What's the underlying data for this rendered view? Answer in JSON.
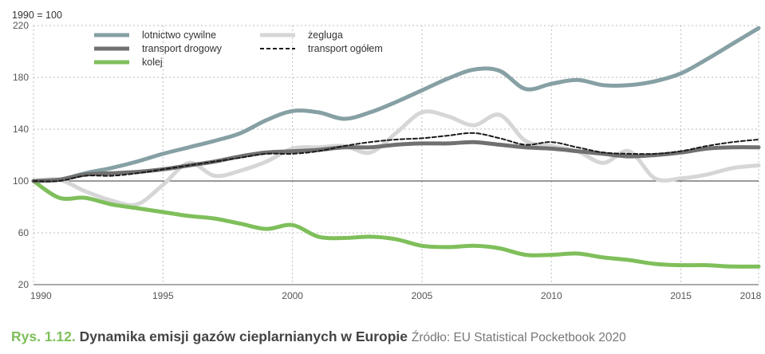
{
  "chart_data": {
    "type": "line",
    "unit_label": "1990 = 100",
    "ylim": [
      20,
      220
    ],
    "yticks": [
      20,
      60,
      100,
      140,
      180,
      220
    ],
    "xlim": [
      1990,
      2018
    ],
    "xticks": [
      1990,
      1995,
      2000,
      2005,
      2010,
      2015,
      2018
    ],
    "x": [
      1990,
      1991,
      1992,
      1993,
      1994,
      1995,
      1996,
      1997,
      1998,
      1999,
      2000,
      2001,
      2002,
      2003,
      2004,
      2005,
      2006,
      2007,
      2008,
      2009,
      2010,
      2011,
      2012,
      2013,
      2014,
      2015,
      2016,
      2017,
      2018
    ],
    "baseline": 100,
    "grid": "dotted",
    "legend": "top-left",
    "series": [
      {
        "name": "lotnictwo cywilne",
        "color": "#86a0a4",
        "width": 5,
        "dash": "",
        "values": [
          100,
          101,
          106,
          110,
          115,
          121,
          126,
          131,
          137,
          147,
          154,
          153,
          148,
          153,
          161,
          170,
          179,
          186,
          185,
          171,
          175,
          178,
          174,
          174,
          177,
          183,
          194,
          206,
          218
        ]
      },
      {
        "name": "transport drogowy",
        "color": "#707070",
        "width": 5,
        "dash": "",
        "values": [
          100,
          101,
          105,
          106,
          107,
          109,
          112,
          115,
          119,
          122,
          123,
          124,
          126,
          126,
          128,
          129,
          129,
          130,
          128,
          126,
          125,
          123,
          121,
          119,
          120,
          122,
          125,
          126,
          126
        ]
      },
      {
        "name": "kolej",
        "color": "#7fbf5b",
        "width": 5,
        "dash": "",
        "values": [
          100,
          87,
          87,
          82,
          79,
          76,
          73,
          71,
          67,
          63,
          66,
          57,
          56,
          57,
          55,
          50,
          49,
          50,
          48,
          43,
          43,
          44,
          41,
          39,
          36,
          35,
          35,
          34,
          34
        ]
      },
      {
        "name": "żegluga",
        "color": "#d6d6d6",
        "width": 5,
        "dash": "",
        "values": [
          100,
          101,
          92,
          85,
          82,
          97,
          114,
          104,
          108,
          115,
          125,
          126,
          127,
          122,
          137,
          153,
          150,
          143,
          151,
          131,
          127,
          123,
          114,
          123,
          102,
          102,
          105,
          110,
          112
        ]
      },
      {
        "name": "transport ogółem",
        "color": "#1a1a1a",
        "width": 2,
        "dash": "5,3",
        "values": [
          100,
          100,
          104,
          104,
          106,
          109,
          112,
          115,
          118,
          121,
          121,
          123,
          127,
          130,
          132,
          133,
          135,
          137,
          133,
          128,
          130,
          126,
          122,
          121,
          121,
          123,
          127,
          130,
          132
        ]
      }
    ]
  },
  "caption": {
    "number": "Rys. 1.12.",
    "title": "Dynamika emisji gazów cieplarnianych w Europie",
    "source": "Źródło: EU Statistical Pocketbook 2020"
  }
}
